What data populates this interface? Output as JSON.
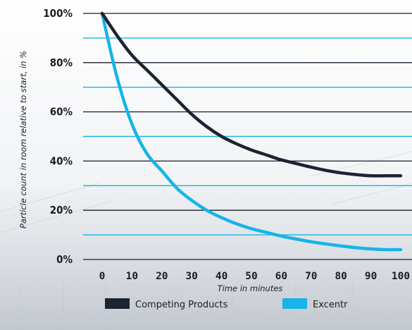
{
  "chart_data": {
    "type": "line",
    "xlabel": "Time in minutes",
    "ylabel": "Particle count in room relative to start, in %",
    "xlim": [
      0,
      100
    ],
    "ylim": [
      0,
      100
    ],
    "x_ticks": [
      "0",
      "10",
      "20",
      "30",
      "40",
      "50",
      "60",
      "70",
      "80",
      "90",
      "100"
    ],
    "y_ticks": [
      "0%",
      "20%",
      "40%",
      "60%",
      "80%",
      "100%"
    ],
    "grid": true,
    "legend_position": "bottom",
    "series": [
      {
        "name": "Competing Products",
        "color": "#1c2333",
        "x": [
          0,
          5,
          10,
          15,
          20,
          25,
          30,
          35,
          40,
          45,
          50,
          55,
          60,
          65,
          70,
          75,
          80,
          85,
          90,
          95,
          100
        ],
        "values": [
          100,
          91,
          83,
          77,
          71,
          65,
          59,
          54,
          50,
          47,
          44.5,
          42.5,
          40.5,
          39,
          37.5,
          36.2,
          35.2,
          34.5,
          34,
          34,
          34
        ]
      },
      {
        "name": "Excentr",
        "color": "#16b4e8",
        "x": [
          0,
          5,
          10,
          15,
          20,
          25,
          30,
          35,
          40,
          45,
          50,
          55,
          60,
          65,
          70,
          75,
          80,
          85,
          90,
          95,
          100
        ],
        "values": [
          100,
          74,
          55,
          43,
          36,
          29,
          24,
          20,
          17,
          14.5,
          12.5,
          11,
          9.5,
          8.3,
          7.2,
          6.3,
          5.5,
          4.8,
          4.3,
          4,
          4
        ]
      }
    ]
  }
}
